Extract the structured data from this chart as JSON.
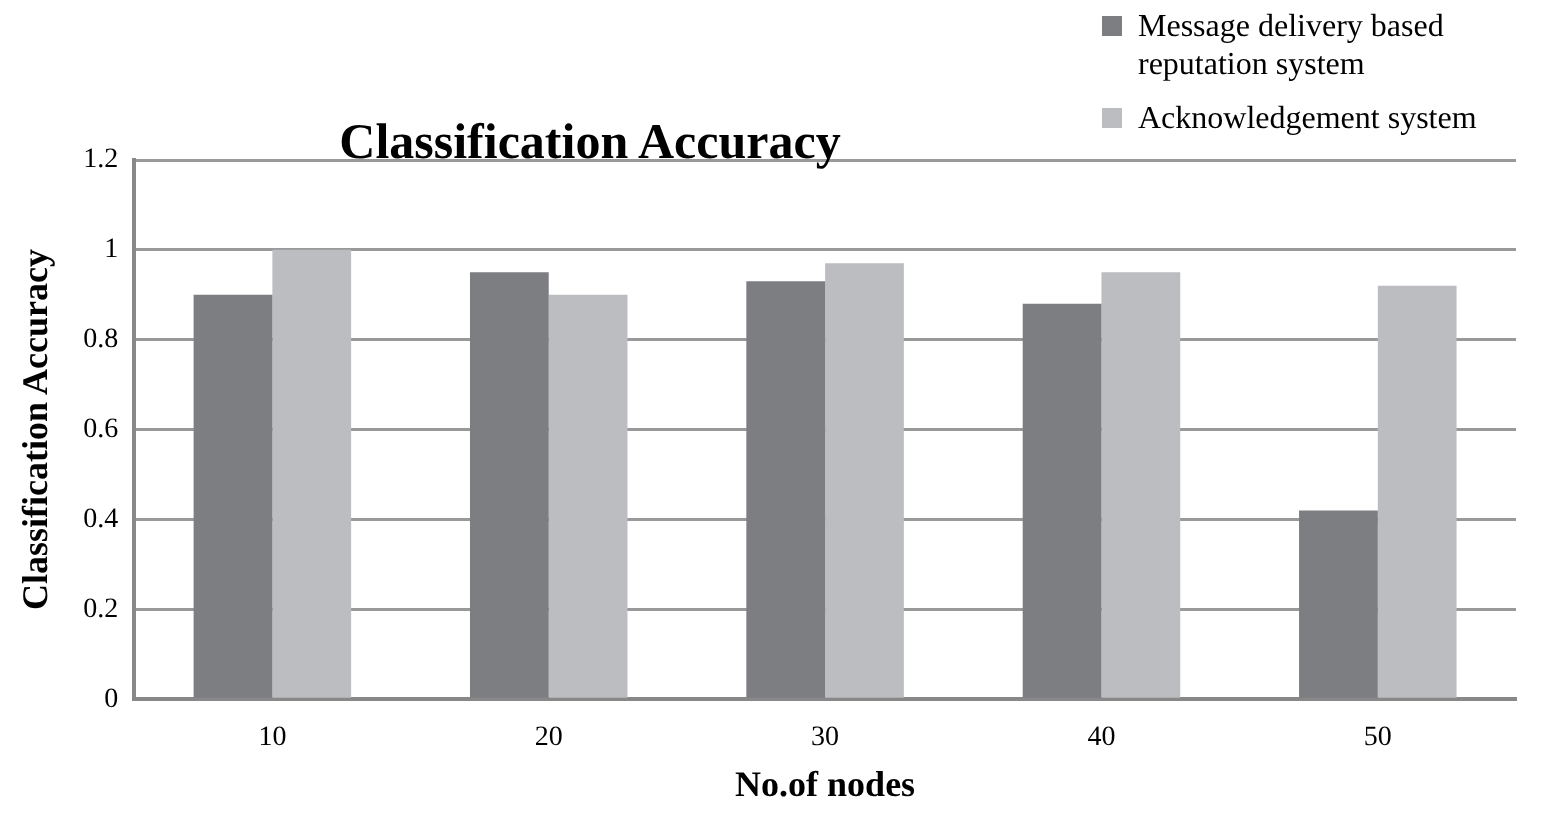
{
  "chart_data": {
    "type": "bar",
    "title": "Classification Accuracy",
    "xlabel": "No.of nodes",
    "ylabel": "Classification Accuracy",
    "categories": [
      "10",
      "20",
      "30",
      "40",
      "50"
    ],
    "series": [
      {
        "name": "Message delivery based reputation system",
        "color": "#7d7e82",
        "values": [
          0.9,
          0.95,
          0.93,
          0.88,
          0.42
        ]
      },
      {
        "name": "Acknowledgement system",
        "color": "#bcbdc1",
        "values": [
          1.0,
          0.9,
          0.97,
          0.95,
          0.92
        ]
      }
    ],
    "ylim": [
      0,
      1.2
    ],
    "yticks": [
      0,
      0.2,
      0.4,
      0.6,
      0.8,
      1,
      1.2
    ],
    "grid": "y",
    "legend": "top right"
  }
}
